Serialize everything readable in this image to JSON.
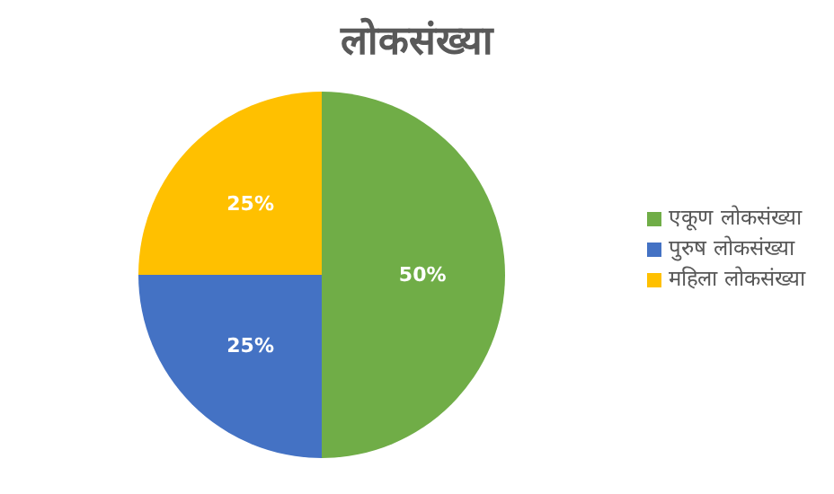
{
  "chart_data": {
    "type": "pie",
    "title": "लोकसंख्या",
    "categories": [
      "एकूण लोकसंख्या",
      "पुरुष लोकसंख्या",
      "महिला लोकसंख्या"
    ],
    "values": [
      50,
      25,
      25
    ],
    "colors": [
      "#70ad47",
      "#4472c4",
      "#ffc000"
    ],
    "value_labels": [
      "50%",
      "25%",
      "25%"
    ],
    "legend": "right"
  }
}
